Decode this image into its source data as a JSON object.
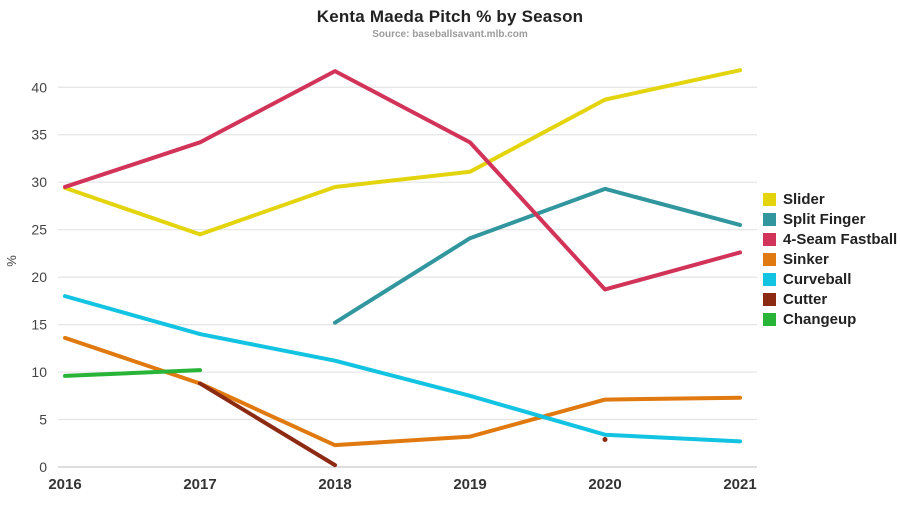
{
  "chart_data": {
    "type": "line",
    "title": "Kenta Maeda Pitch % by Season",
    "subtitle": "Source: baseballsavant.mlb.com",
    "xlabel": "",
    "ylabel": "%",
    "categories": [
      "2016",
      "2017",
      "2018",
      "2019",
      "2020",
      "2021"
    ],
    "y_ticks": [
      0,
      5,
      10,
      15,
      20,
      25,
      30,
      35,
      40
    ],
    "ylim": [
      0,
      43.4
    ],
    "grid": true,
    "legend_position": "right",
    "series": [
      {
        "name": "Slider",
        "color": "#e3d40e",
        "values": [
          29.4,
          24.5,
          29.5,
          31.1,
          38.7,
          41.8
        ]
      },
      {
        "name": "Split Finger",
        "color": "#31969e",
        "values": [
          null,
          null,
          15.2,
          24.1,
          29.3,
          25.5
        ]
      },
      {
        "name": "4-Seam Fastball",
        "color": "#d23359",
        "values": [
          29.5,
          34.2,
          41.7,
          34.2,
          18.7,
          22.6
        ]
      },
      {
        "name": "Sinker",
        "color": "#e0790f",
        "values": [
          13.6,
          8.8,
          2.3,
          3.2,
          7.1,
          7.3
        ]
      },
      {
        "name": "Curveball",
        "color": "#12c3e2",
        "values": [
          18.0,
          14.0,
          11.2,
          7.5,
          3.4,
          2.7
        ]
      },
      {
        "name": "Cutter",
        "color": "#8c2a12",
        "values": [
          null,
          8.8,
          0.2,
          null,
          2.9,
          null
        ]
      },
      {
        "name": "Changeup",
        "color": "#27b437",
        "values": [
          9.6,
          10.2,
          null,
          null,
          null,
          null
        ]
      }
    ],
    "colors": {
      "background": "#ffffff",
      "grid": "#e4e4e4",
      "baseline": "#c9c9c9",
      "title_text": "#222222",
      "subtitle_text": "#9b9b9b",
      "tick_text": "#444444",
      "x_tick_text": "#333333"
    }
  }
}
